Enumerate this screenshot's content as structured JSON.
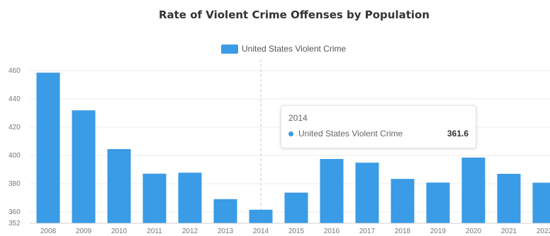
{
  "chart_data": {
    "type": "bar",
    "title": "Rate of Violent Crime Offenses by Population",
    "xlabel": "",
    "ylabel": "",
    "categories": [
      "2008",
      "2009",
      "2010",
      "2011",
      "2012",
      "2013",
      "2014",
      "2015",
      "2016",
      "2017",
      "2018",
      "2019",
      "2020",
      "2021",
      "2022"
    ],
    "series": [
      {
        "name": "United States Violent Crime",
        "values": [
          458.6,
          431.9,
          404.5,
          387.1,
          387.8,
          369.1,
          361.6,
          373.7,
          397.5,
          394.9,
          383.4,
          380.8,
          398.5,
          387.0,
          380.7
        ]
      }
    ],
    "ylim": [
      352,
      466
    ],
    "yticks": [
      352,
      360,
      380,
      400,
      420,
      440,
      460
    ],
    "grid": true,
    "legend_position": "top-center",
    "colors": {
      "bar": "#3a9be6",
      "grid": "#ececec",
      "axis_text": "#777777",
      "crosshair": "#c8c8c8"
    },
    "tooltip": {
      "category": "2014",
      "series_name": "United States Violent Crime",
      "value": "361.6"
    }
  }
}
